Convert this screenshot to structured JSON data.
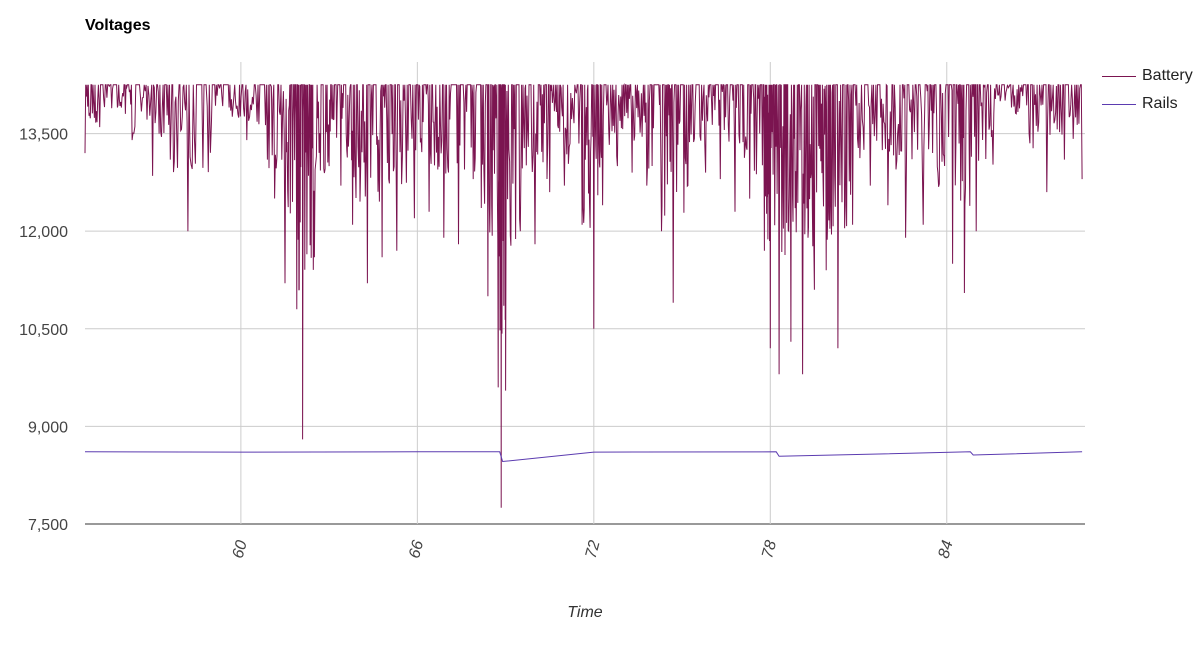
{
  "chart_data": {
    "type": "line",
    "title": "Voltages",
    "xlabel": "Time",
    "ylabel": "",
    "xlim": [
      54.7,
      88.7
    ],
    "ylim": [
      7500,
      14600
    ],
    "yticks": [
      7500,
      9000,
      10500,
      12000,
      13500
    ],
    "ytick_labels": [
      "7,500",
      "9,000",
      "10,500",
      "12,000",
      "13,500"
    ],
    "xticks": [
      60,
      66,
      72,
      78,
      84
    ],
    "xtick_labels": [
      "60",
      "66",
      "72",
      "78",
      "84"
    ],
    "grid": true,
    "legend_position": "top-right",
    "series": [
      {
        "name": "Battery",
        "color": "#7b1450",
        "baseline": 14250,
        "x": [
          54.7,
          55.2,
          55.8,
          56.3,
          57.0,
          57.6,
          58.2,
          59.0,
          59.6,
          60.2,
          60.9,
          61.5,
          61.9,
          62.1,
          62.5,
          63.0,
          63.4,
          63.8,
          64.3,
          64.8,
          65.3,
          65.9,
          66.4,
          66.9,
          67.4,
          67.9,
          68.4,
          68.75,
          68.85,
          69.0,
          69.5,
          70.0,
          70.5,
          71.0,
          71.6,
          72.0,
          72.3,
          72.8,
          73.3,
          73.8,
          74.3,
          74.7,
          75.2,
          75.8,
          76.3,
          76.8,
          77.3,
          77.8,
          78.0,
          78.3,
          78.7,
          79.1,
          79.5,
          79.9,
          80.3,
          80.8,
          81.4,
          82.0,
          82.6,
          83.2,
          83.7,
          84.2,
          84.6,
          85.0,
          85.6,
          86.2,
          86.8,
          87.4,
          88.0,
          88.6
        ],
        "lows": [
          13200,
          13600,
          13900,
          13400,
          12850,
          13100,
          12000,
          13700,
          13900,
          13400,
          13100,
          11200,
          10800,
          8800,
          11600,
          13000,
          12700,
          12100,
          11200,
          11600,
          11700,
          12200,
          12300,
          11900,
          11800,
          12800,
          11000,
          9600,
          7750,
          9550,
          12000,
          11800,
          12600,
          12700,
          12100,
          10500,
          12400,
          13000,
          12900,
          12700,
          12000,
          10900,
          12700,
          12900,
          12800,
          12300,
          12500,
          11700,
          10200,
          9800,
          10300,
          9800,
          11100,
          11400,
          10200,
          12100,
          12700,
          12400,
          11900,
          12100,
          12900,
          11500,
          11050,
          12000,
          13800,
          13900,
          13500,
          12600,
          13100,
          12800
        ]
      },
      {
        "name": "Rails",
        "color": "#5b3bb0",
        "baseline": 8610,
        "x": [
          54.7,
          60.0,
          66.0,
          68.8,
          68.9,
          72.0,
          78.2,
          78.3,
          84.8,
          84.9,
          88.6
        ],
        "values": [
          8610,
          8605,
          8610,
          8610,
          8460,
          8605,
          8610,
          8540,
          8610,
          8560,
          8610
        ]
      }
    ]
  }
}
